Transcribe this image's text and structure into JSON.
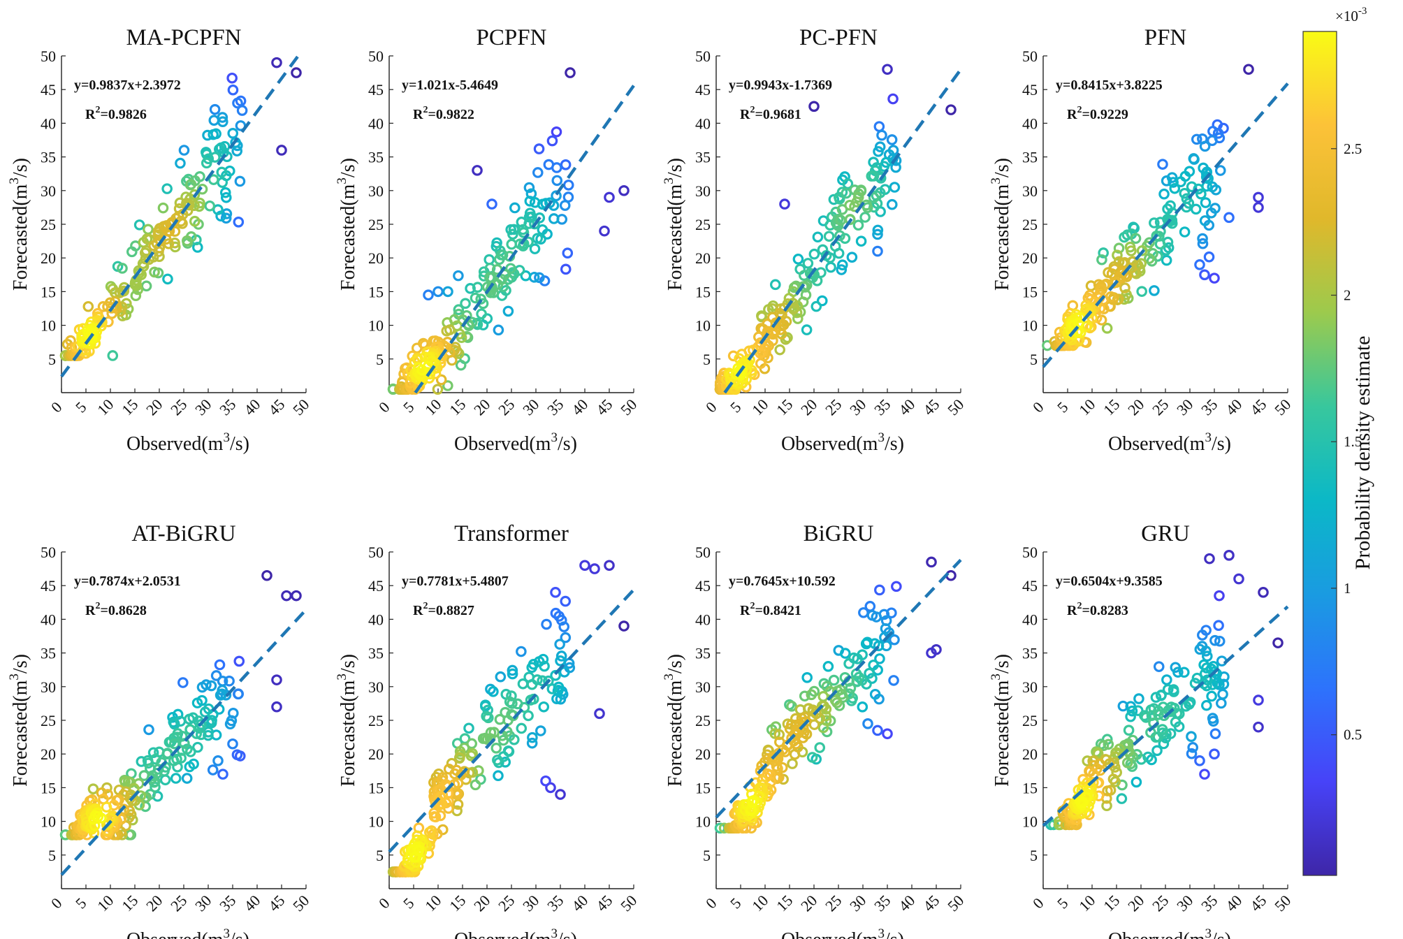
{
  "figure": {
    "xlabel_main": "Observed(m",
    "xlabel_sup": "3",
    "xlabel_end": "/s)",
    "ylabel_main": "Forecasted(m",
    "ylabel_sup": "3",
    "ylabel_end": "/s)",
    "xticks": [
      "0",
      "5",
      "10",
      "15",
      "20",
      "25",
      "30",
      "35",
      "40",
      "45",
      "50"
    ],
    "yticks": [
      "5",
      "10",
      "15",
      "20",
      "25",
      "30",
      "35",
      "40",
      "45",
      "50"
    ],
    "r2_prefix": "R",
    "r2_sup": "2"
  },
  "colorbar": {
    "label": "Probability density estimate",
    "exponent_base": "×10",
    "exponent_power": "-3",
    "ticks": [
      "0.5",
      "1",
      "1.5",
      "2",
      "2.5"
    ],
    "tick_values": [
      0.5,
      1,
      1.5,
      2,
      2.5
    ],
    "range": [
      0.02,
      2.9
    ],
    "colormap": [
      "#3e26a8",
      "#4743f8",
      "#2d73fc",
      "#1a9be1",
      "#0bb8c7",
      "#38c79d",
      "#9cca4d",
      "#e0b82b",
      "#fcc238",
      "#f9fb15"
    ]
  },
  "chart_data": [
    {
      "type": "scatter",
      "title": "MA-PCPFN",
      "equation": "y=0.9837x+2.3972",
      "r2": "=0.9826",
      "slope": 0.9837,
      "intercept": 2.3972,
      "xlim": [
        0,
        50
      ],
      "ylim": [
        0,
        50
      ],
      "seed": 11,
      "cluster": [
        5,
        8
      ],
      "y_floor": 5.5,
      "outliers": [
        [
          44,
          49
        ],
        [
          48,
          47.5
        ],
        [
          45,
          36
        ],
        [
          36,
          43
        ],
        [
          28,
          25
        ]
      ]
    },
    {
      "type": "scatter",
      "title": "PCPFN",
      "equation": "y=1.021x-5.4649",
      "r2": "=0.9822",
      "slope": 1.021,
      "intercept": -5.4649,
      "xlim": [
        0,
        50
      ],
      "ylim": [
        0,
        50
      ],
      "seed": 23,
      "cluster": [
        5,
        2
      ],
      "y_floor": 0.5,
      "outliers": [
        [
          37,
          47.5
        ],
        [
          18,
          33
        ],
        [
          44,
          24
        ],
        [
          48,
          30
        ],
        [
          45,
          29
        ],
        [
          21,
          28
        ],
        [
          8,
          14.5
        ],
        [
          10,
          15
        ],
        [
          12,
          15
        ]
      ]
    },
    {
      "type": "scatter",
      "title": "PC-PFN",
      "equation": "y=0.9943x-1.7369",
      "r2": "=0.9681",
      "slope": 0.9943,
      "intercept": -1.7369,
      "xlim": [
        0,
        50
      ],
      "ylim": [
        0,
        50
      ],
      "seed": 37,
      "cluster": [
        4,
        2
      ],
      "y_floor": 0.5,
      "outliers": [
        [
          20,
          42.5
        ],
        [
          35,
          48
        ],
        [
          33,
          21
        ],
        [
          33,
          23.5
        ],
        [
          48,
          42
        ],
        [
          14,
          28
        ]
      ]
    },
    {
      "type": "scatter",
      "title": "PFN",
      "equation": "y=0.8415x+3.8225",
      "r2": "=0.9229",
      "slope": 0.8415,
      "intercept": 3.8225,
      "xlim": [
        0,
        50
      ],
      "ylim": [
        0,
        50
      ],
      "seed": 41,
      "cluster": [
        6,
        9
      ],
      "y_floor": 7,
      "outliers": [
        [
          42,
          48
        ],
        [
          44,
          27.5
        ],
        [
          32,
          19
        ],
        [
          33,
          17.5
        ],
        [
          35,
          17
        ],
        [
          38,
          26
        ],
        [
          44,
          29
        ]
      ]
    },
    {
      "type": "scatter",
      "title": "AT-BiGRU",
      "equation": "y=0.7874x+2.0531",
      "r2": "=0.8628",
      "slope": 0.7874,
      "intercept": 2.0531,
      "xlim": [
        0,
        50
      ],
      "ylim": [
        0,
        50
      ],
      "seed": 53,
      "cluster": [
        5,
        10
      ],
      "y_floor": 8,
      "outliers": [
        [
          42,
          46.5
        ],
        [
          46,
          43.5
        ],
        [
          48,
          43.5
        ],
        [
          44,
          31
        ],
        [
          44,
          27
        ],
        [
          32,
          19
        ],
        [
          33,
          17
        ],
        [
          35,
          21.5
        ]
      ]
    },
    {
      "type": "scatter",
      "title": "Transformer",
      "equation": "y=0.7781x+5.4807",
      "r2": "=0.8827",
      "slope": 0.7781,
      "intercept": 5.4807,
      "xlim": [
        0,
        50
      ],
      "ylim": [
        0,
        50
      ],
      "seed": 67,
      "cluster": [
        5,
        4
      ],
      "y_floor": 2.5,
      "outliers": [
        [
          40,
          48
        ],
        [
          42,
          47.5
        ],
        [
          45,
          48
        ],
        [
          48,
          39
        ],
        [
          43,
          26
        ],
        [
          32,
          16
        ],
        [
          33,
          15
        ],
        [
          35,
          14
        ],
        [
          34,
          44
        ]
      ]
    },
    {
      "type": "scatter",
      "title": "BiGRU",
      "equation": "y=0.7645x+10.592",
      "r2": "=0.8421",
      "slope": 0.7645,
      "intercept": 10.592,
      "xlim": [
        0,
        50
      ],
      "ylim": [
        0,
        50
      ],
      "seed": 79,
      "cluster": [
        6,
        11
      ],
      "y_floor": 9,
      "outliers": [
        [
          44,
          48.5
        ],
        [
          48,
          46.5
        ],
        [
          44,
          35
        ],
        [
          45,
          35.5
        ],
        [
          31,
          24.5
        ],
        [
          33,
          23.5
        ],
        [
          35,
          23
        ]
      ]
    },
    {
      "type": "scatter",
      "title": "GRU",
      "equation": "y=0.6504x+9.3585",
      "r2": "=0.8283",
      "slope": 0.6504,
      "intercept": 9.3585,
      "xlim": [
        0,
        50
      ],
      "ylim": [
        0,
        50
      ],
      "seed": 97,
      "cluster": [
        6,
        11
      ],
      "y_floor": 9.5,
      "outliers": [
        [
          34,
          49
        ],
        [
          38,
          49.5
        ],
        [
          40,
          46
        ],
        [
          36,
          43.5
        ],
        [
          45,
          44
        ],
        [
          48,
          36.5
        ],
        [
          44,
          28
        ],
        [
          44,
          24
        ],
        [
          32,
          19
        ],
        [
          33,
          17
        ],
        [
          35,
          20
        ]
      ]
    }
  ]
}
